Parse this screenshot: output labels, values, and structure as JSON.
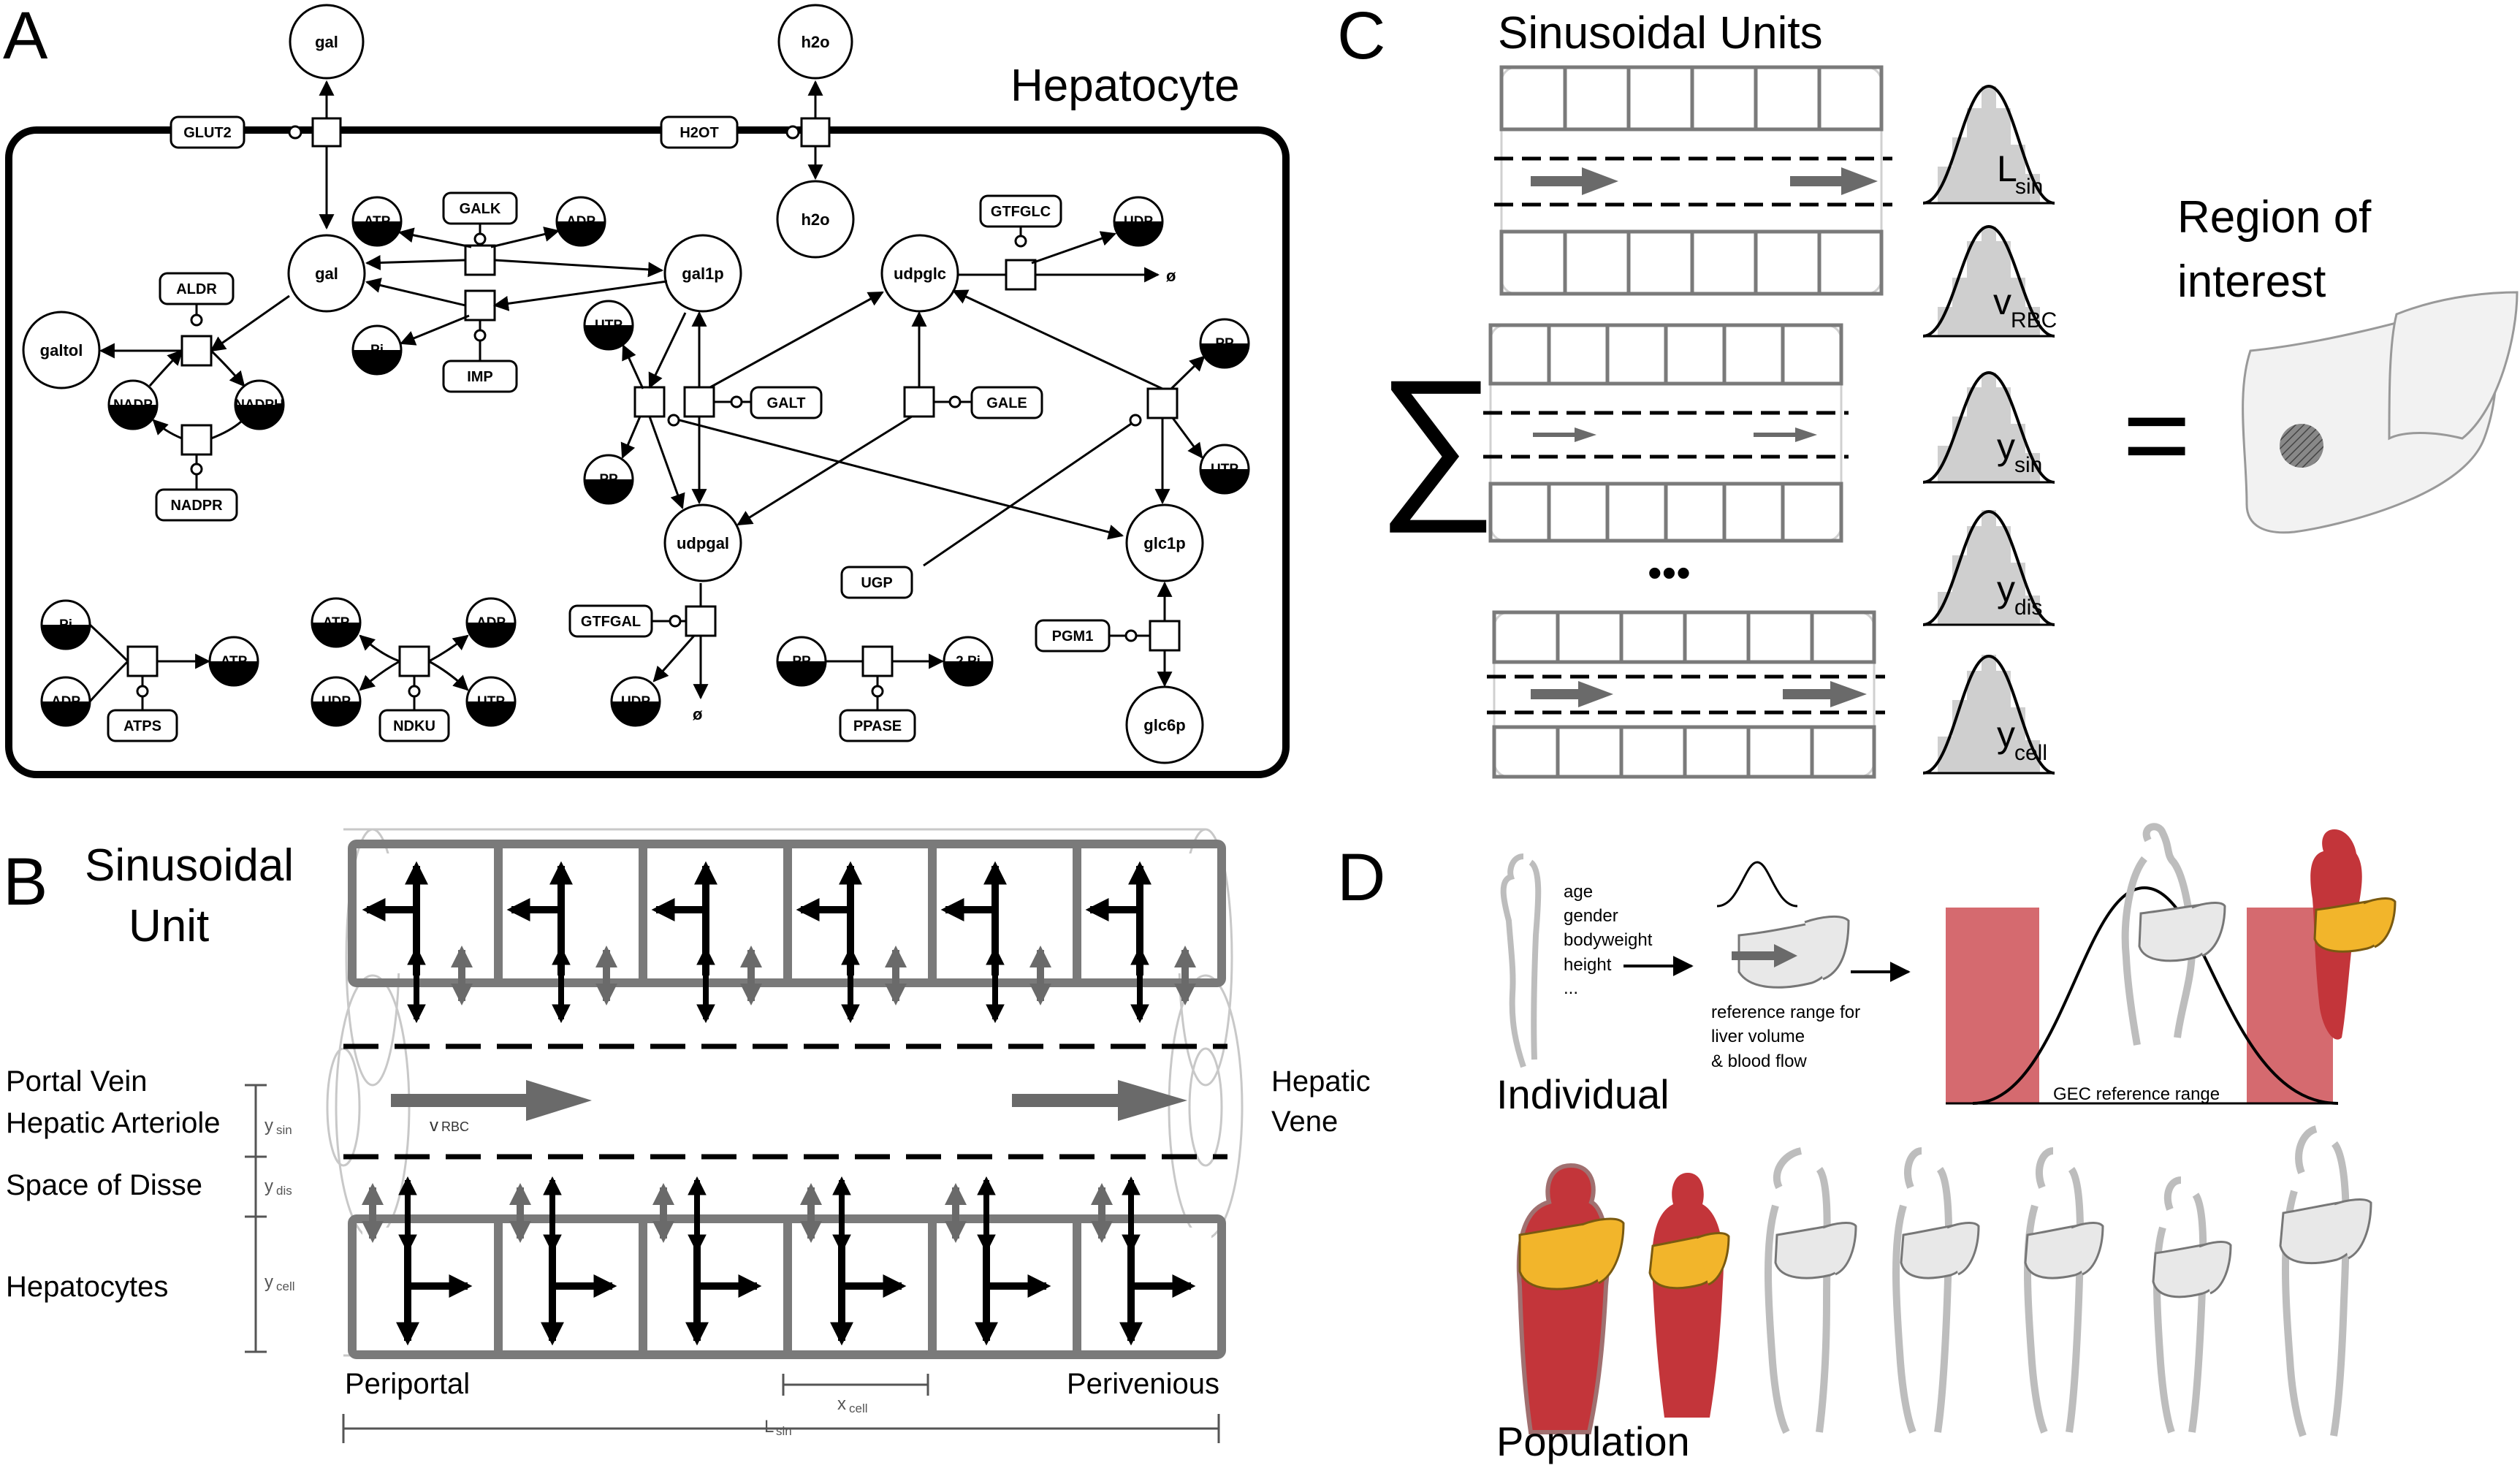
{
  "panels": {
    "a": {
      "letter": "A",
      "title": "Hepatocyte",
      "external": {
        "gal": "gal",
        "h2o": "h2o"
      },
      "transporters": {
        "glut2": "GLUT2",
        "h2ot": "H2OT"
      },
      "species": {
        "gal": "gal",
        "h2o": "h2o",
        "gal1p": "gal1p",
        "udpglc": "udpglc",
        "galtol": "galtol",
        "udpgal": "udpgal",
        "glc1p": "glc1p",
        "glc6p": "glc6p",
        "atp": "ATP",
        "adp": "ADP",
        "pi": "Pi",
        "utp": "UTP",
        "udp": "UDP",
        "pp": "PP",
        "nadp": "NADP",
        "nadph": "NADPH",
        "two_pi": "2 Pi",
        "empty": "ø"
      },
      "enzymes": {
        "galk": "GALK",
        "imp": "IMP",
        "aldr": "ALDR",
        "nadpr": "NADPR",
        "gtfglc": "GTFGLC",
        "galt": "GALT",
        "gale": "GALE",
        "ugp": "UGP",
        "gtfgal": "GTFGAL",
        "pgm1": "PGM1",
        "atps": "ATPS",
        "ndku": "NDKU",
        "ppase": "PPASE"
      }
    },
    "b": {
      "letter": "B",
      "title_line1": "Sinusoidal",
      "title_line2": "Unit",
      "labels": {
        "portal_vein": "Portal Vein",
        "hepatic_arteriole": "Hepatic Arteriole",
        "space_of_disse": "Space of Disse",
        "hepatocytes": "Hepatocytes",
        "hepatic": "Hepatic",
        "vene": "Vene",
        "periportal": "Periportal",
        "perivenious": "Perivenious"
      },
      "dims": {
        "y_sin": "y",
        "y_sin_sub": "sin",
        "y_dis": "y",
        "y_dis_sub": "dis",
        "y_cell": "y",
        "y_cell_sub": "cell",
        "x_cell": "x",
        "x_cell_sub": "cell",
        "l_sin": "L",
        "l_sin_sub": "sin",
        "v_rbc": "v",
        "v_rbc_sub": "RBC"
      }
    },
    "c": {
      "letter": "C",
      "title": "Sinusoidal Units",
      "sum_symbol": "∑",
      "ellipsis": "•••",
      "equals": "=",
      "roi_line1": "Region of",
      "roi_line2": "interest",
      "distributions": [
        {
          "main": "L",
          "sub": "sin"
        },
        {
          "main": "v",
          "sub": "RBC"
        },
        {
          "main": "y",
          "sub": "sin"
        },
        {
          "main": "y",
          "sub": "dis"
        },
        {
          "main": "y",
          "sub": "cell"
        }
      ]
    },
    "d": {
      "letter": "D",
      "covariates": [
        "age",
        "gender",
        "bodyweight",
        "height",
        "..."
      ],
      "reference_caption": [
        "reference range for",
        "liver volume",
        "& blood flow"
      ],
      "gec_range": "GEC reference range",
      "individual": "Individual",
      "population": "Population"
    }
  },
  "colors": {
    "metabolite_dark": "#000000",
    "cell_border_gray": "#7a7a7a",
    "outline_light": "#c8c8c8",
    "distribution_fill": "#cfcfcf",
    "range_red": "#d56a6f",
    "body_red": "#c3353a",
    "liver_yellow": "#f2b52b",
    "flow_arrow": "#6a6a6a"
  }
}
